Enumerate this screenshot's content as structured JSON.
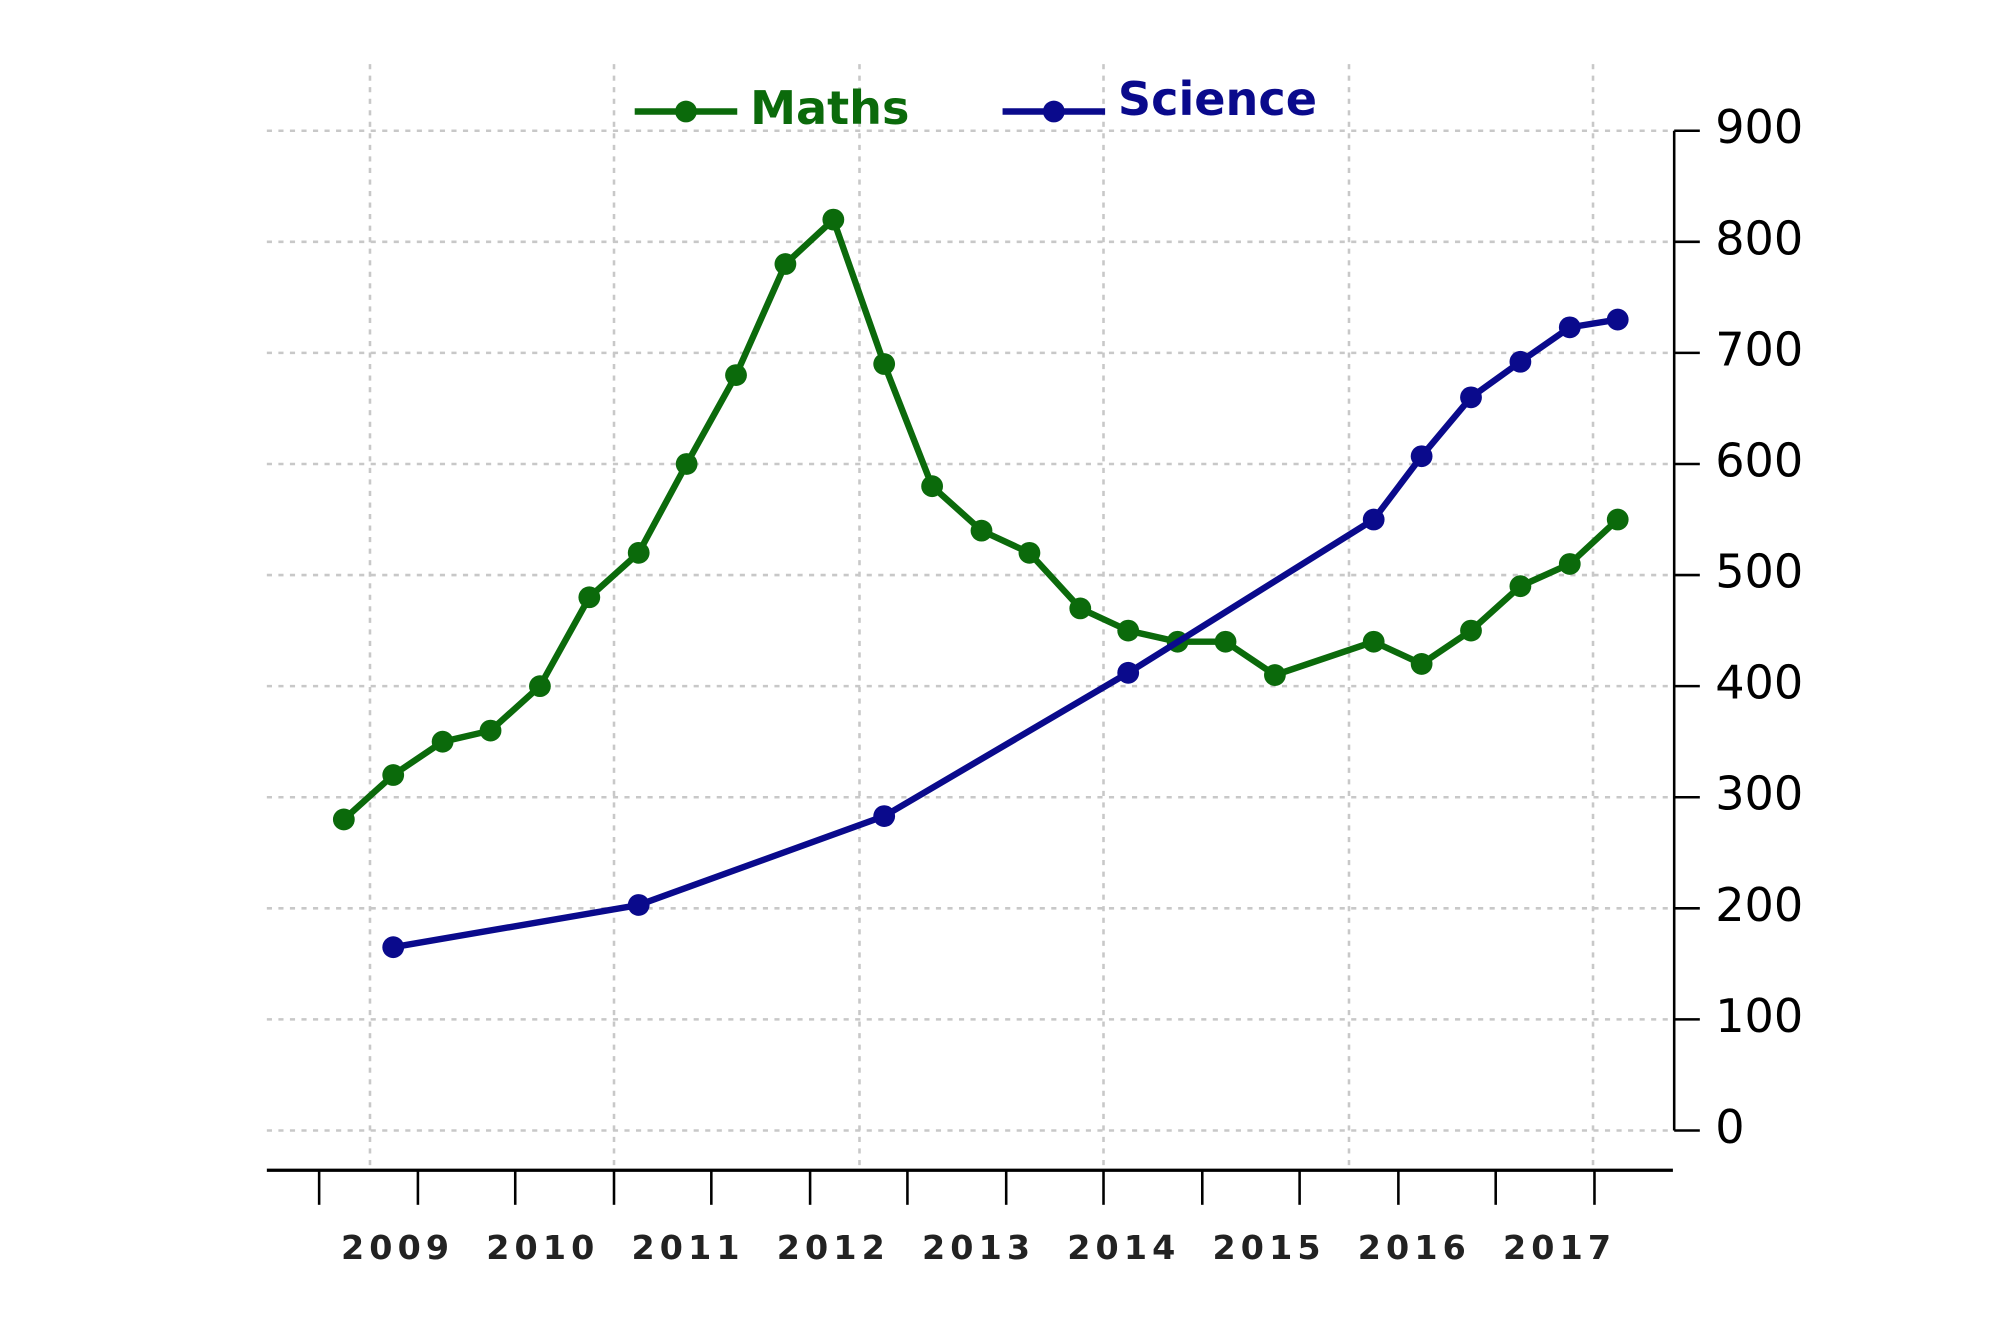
{
  "chart_data": {
    "type": "line",
    "series": [
      {
        "name": "Maths",
        "color": "#0b6a0b",
        "x": [
          2008.63,
          2008.97,
          2009.31,
          2009.64,
          2009.98,
          2010.32,
          2010.66,
          2010.99,
          2011.33,
          2011.67,
          2012.0,
          2012.35,
          2012.68,
          2013.02,
          2013.35,
          2013.7,
          2014.03,
          2014.37,
          2014.7,
          2015.04,
          2015.72,
          2016.05,
          2016.39,
          2016.73,
          2017.07,
          2017.4
        ],
        "values": [
          280,
          320,
          350,
          360,
          400,
          480,
          520,
          600,
          680,
          780,
          820,
          690,
          580,
          540,
          520,
          470,
          450,
          440,
          440,
          410,
          440,
          420,
          450,
          490,
          510,
          550
        ]
      },
      {
        "name": "Science",
        "color": "#0a0a8c",
        "x": [
          2008.97,
          2010.66,
          2012.35,
          2014.03,
          2015.72,
          2016.05,
          2016.39,
          2016.73,
          2017.07,
          2017.4
        ],
        "values": [
          165,
          203,
          283,
          412,
          550,
          607,
          660,
          692,
          723,
          730
        ]
      }
    ],
    "xlim": [
      2008.1,
      2017.78
    ],
    "xticks": [
      2009,
      2010,
      2011,
      2012,
      2013,
      2014,
      2015,
      2016,
      2017
    ],
    "xminorticks": [
      2008.46,
      2009.14,
      2009.81,
      2010.49,
      2011.16,
      2011.84,
      2012.51,
      2013.19,
      2013.86,
      2014.54,
      2015.21,
      2015.89,
      2016.56,
      2017.24
    ],
    "xgrid": [
      2008.81,
      2010.49,
      2012.18,
      2013.86,
      2015.55,
      2017.23
    ],
    "ylim": [
      0,
      900
    ],
    "yticks": [
      0,
      100,
      200,
      300,
      400,
      500,
      600,
      700,
      800,
      900
    ],
    "grid": true
  }
}
